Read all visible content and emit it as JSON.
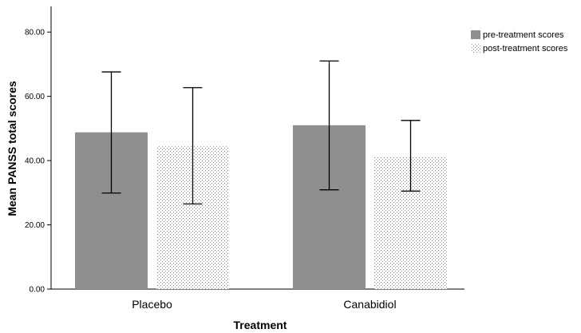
{
  "chart_data": {
    "type": "bar",
    "title": "",
    "xlabel": "Treatment",
    "ylabel": "Mean PANSS total scores",
    "categories": [
      "Placebo",
      "Canabidiol"
    ],
    "ylim": [
      0,
      88
    ],
    "yticks": [
      "0.00",
      "20.00",
      "40.00",
      "60.00",
      "80.00"
    ],
    "yticks_values": [
      0,
      20,
      40,
      60,
      80
    ],
    "grid": false,
    "legend_position": "top-right",
    "series": [
      {
        "name": "pre-treatment scores",
        "values": [
          48.8,
          51.0
        ],
        "error_low": [
          29.9,
          30.9
        ],
        "error_high": [
          67.6,
          71.0
        ],
        "color": "#8f8f8f",
        "pattern": "solid"
      },
      {
        "name": "post-treatment scores",
        "values": [
          44.5,
          41.3
        ],
        "error_low": [
          26.5,
          30.5
        ],
        "error_high": [
          62.7,
          52.5
        ],
        "color": "#ffffff",
        "pattern": "dots"
      }
    ]
  }
}
